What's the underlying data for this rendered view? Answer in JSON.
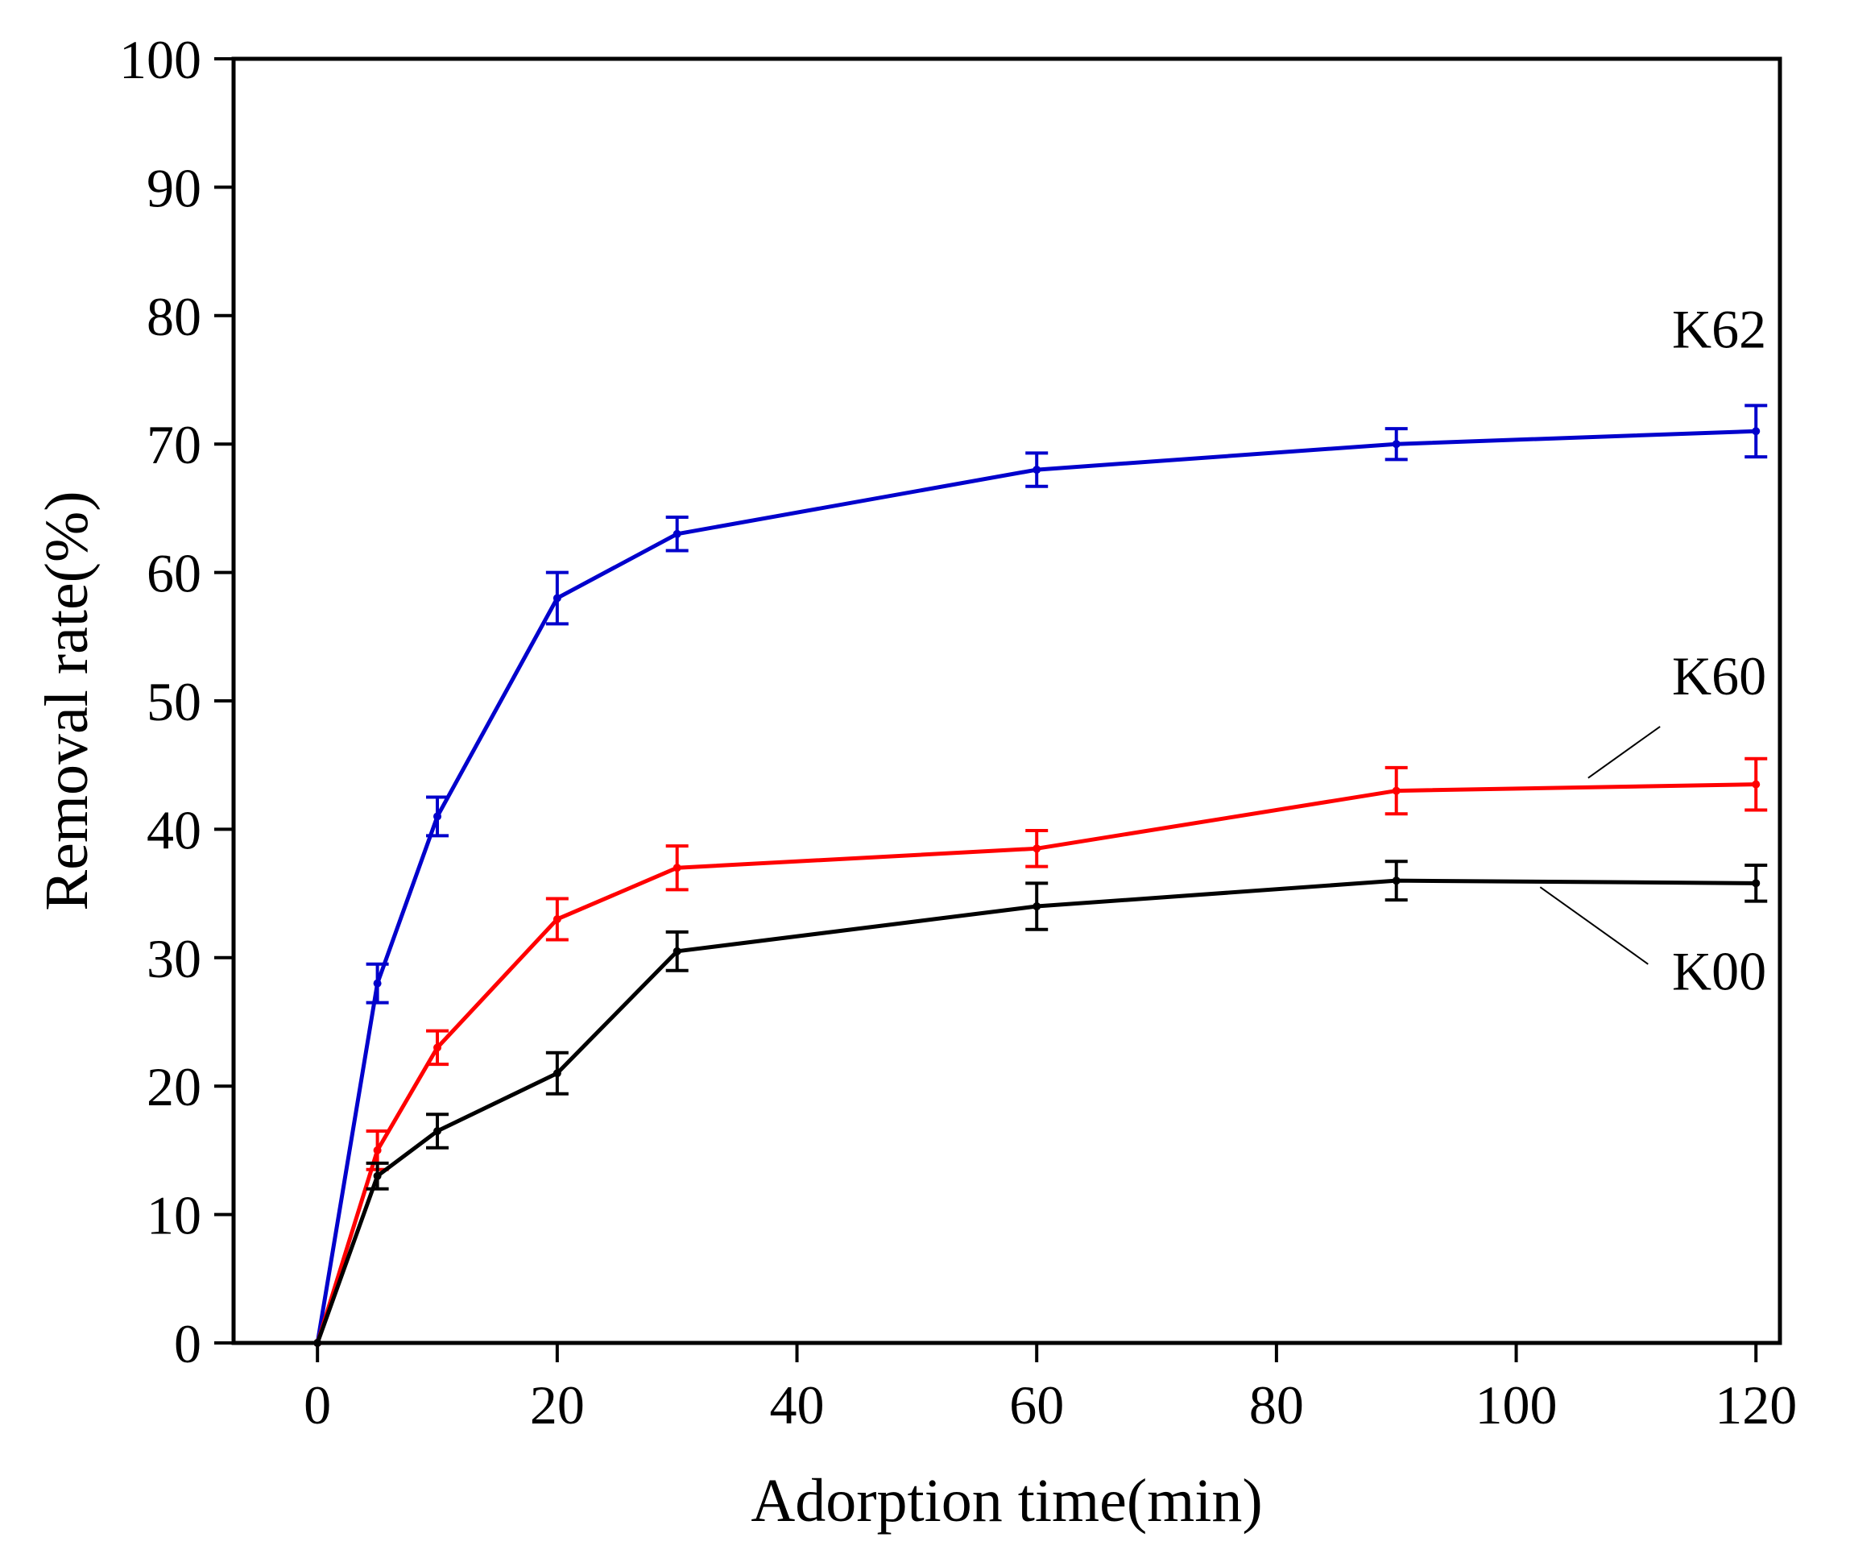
{
  "chart_data": {
    "type": "line",
    "title": "",
    "xlabel": "Adorption time(min)",
    "ylabel": "Removal rate(%)",
    "xlim": [
      -7,
      122
    ],
    "ylim": [
      0,
      100
    ],
    "xticks": [
      0,
      20,
      40,
      60,
      80,
      100,
      120
    ],
    "yticks": [
      0,
      10,
      20,
      30,
      40,
      50,
      60,
      70,
      80,
      90,
      100
    ],
    "grid": false,
    "legend": "none",
    "series": [
      {
        "name": "K62",
        "color": "#0000cc",
        "x": [
          0,
          5,
          10,
          20,
          30,
          60,
          90,
          120
        ],
        "y": [
          0,
          28,
          41,
          58,
          63,
          68,
          70,
          71
        ],
        "error": [
          0,
          1.5,
          1.5,
          2,
          1.3,
          1.3,
          1.2,
          2
        ]
      },
      {
        "name": "K60",
        "color": "#ff0000",
        "x": [
          0,
          5,
          10,
          20,
          30,
          60,
          90,
          120
        ],
        "y": [
          0,
          15,
          23,
          33,
          37,
          38.5,
          43,
          43.5
        ],
        "error": [
          0,
          1.5,
          1.3,
          1.6,
          1.7,
          1.4,
          1.8,
          2
        ]
      },
      {
        "name": "K00",
        "color": "#000000",
        "x": [
          0,
          5,
          10,
          20,
          30,
          60,
          90,
          120
        ],
        "y": [
          0,
          13,
          16.5,
          21,
          30.5,
          34,
          36,
          35.8
        ],
        "error": [
          0,
          1,
          1.3,
          1.6,
          1.5,
          1.8,
          1.5,
          1.4
        ]
      }
    ],
    "annotations": [
      {
        "text": "K62",
        "series": "K62",
        "x": 113,
        "y": 77.5,
        "leader": false
      },
      {
        "text": "K60",
        "series": "K60",
        "x": 113,
        "y": 50.5,
        "leader": true,
        "leader_from": [
          112,
          48
        ],
        "leader_to": [
          106,
          44
        ]
      },
      {
        "text": "K00",
        "series": "K00",
        "x": 113,
        "y": 27.5,
        "leader": true,
        "leader_from": [
          111,
          29.5
        ],
        "leader_to": [
          102,
          35.5
        ]
      }
    ]
  }
}
